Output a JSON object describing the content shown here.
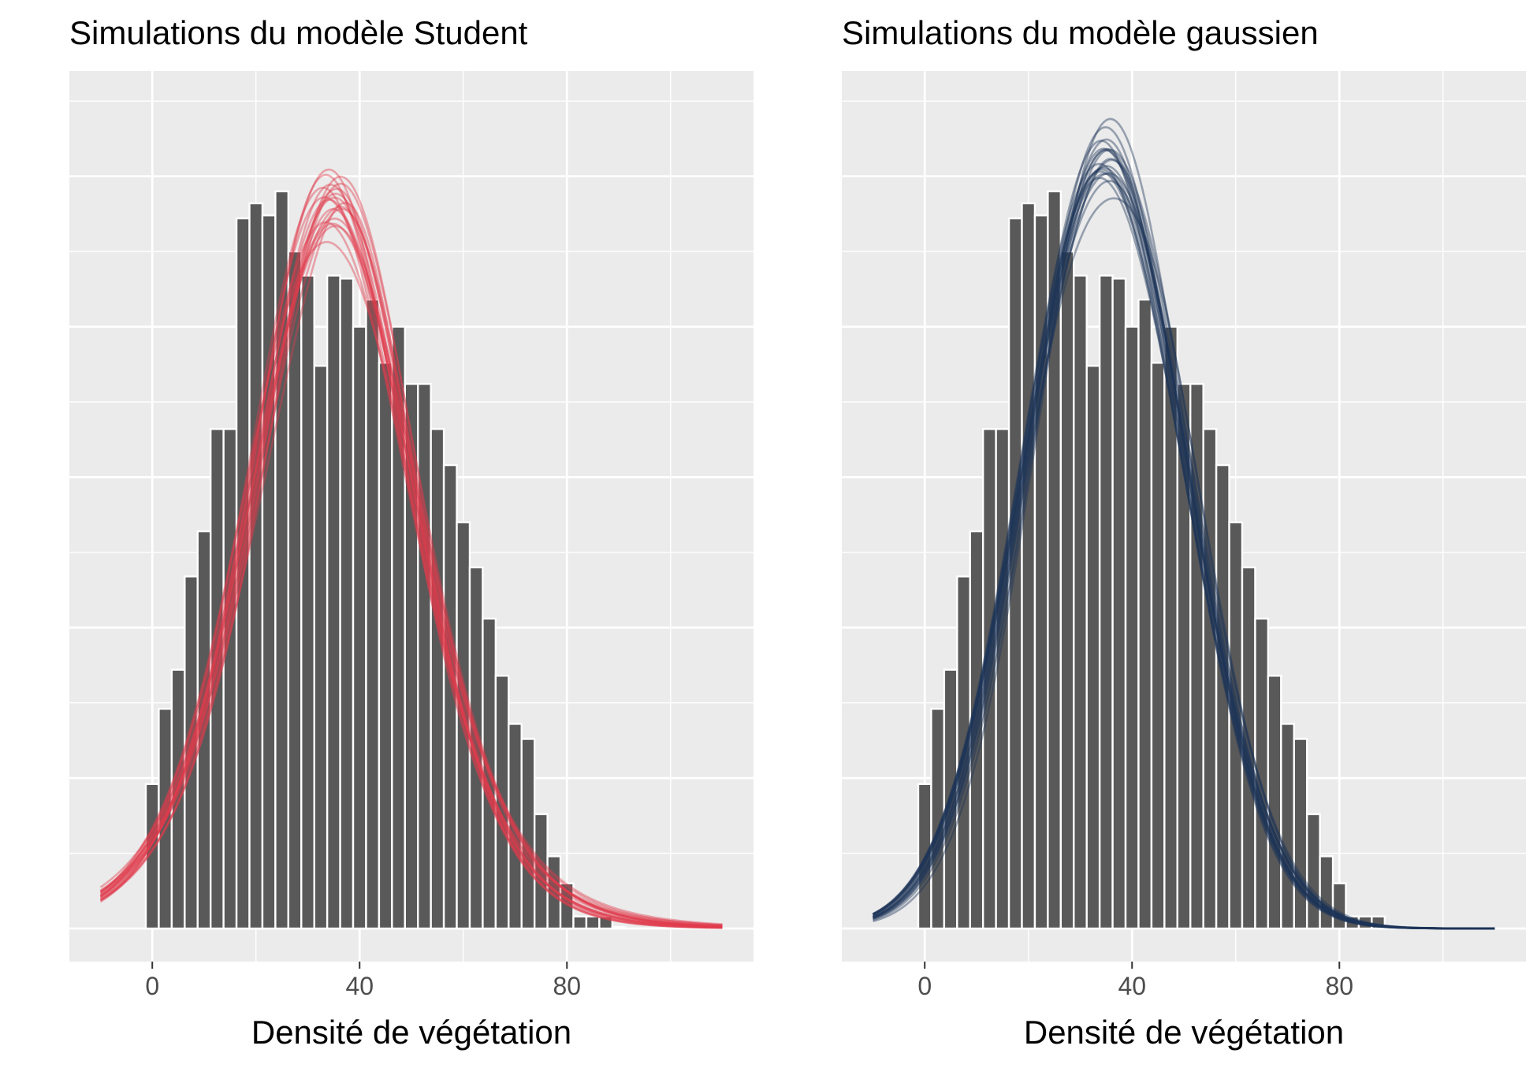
{
  "colors": {
    "panel_background": "#ebebeb",
    "grid_line": "#ffffff",
    "bar_fill": "#595959",
    "bar_outline": "#ffffff",
    "student_curve": "#e03c4c",
    "gaussian_curve": "#1d3557",
    "tick_text": "#4d4d4d"
  },
  "chart_data": [
    {
      "type": "bar",
      "subtype": "histogram-with-density-overlays",
      "title": "Simulations du modèle Student",
      "xlabel": "Densité de végétation",
      "ylabel": "",
      "xlim": [
        -16,
        116
      ],
      "ylim": [
        -0.0011,
        0.0285
      ],
      "x_ticks": [
        0,
        40,
        80
      ],
      "y_ticks_shown": false,
      "grid": true,
      "bin_width": 2.5,
      "bins": {
        "centers": [
          0,
          2.5,
          5,
          7.5,
          10,
          12.5,
          15,
          17.5,
          20,
          22.5,
          25,
          27.5,
          30,
          32.5,
          35,
          37.5,
          40,
          42.5,
          45,
          47.5,
          50,
          52.5,
          55,
          57.5,
          60,
          62.5,
          65,
          67.5,
          70,
          72.5,
          75,
          77.5,
          80,
          82.5,
          85,
          87.5,
          90
        ],
        "density": [
          0.0048,
          0.0073,
          0.0086,
          0.0117,
          0.0132,
          0.0166,
          0.0166,
          0.0236,
          0.0241,
          0.0237,
          0.0245,
          0.0225,
          0.0217,
          0.0187,
          0.0217,
          0.0216,
          0.02,
          0.0209,
          0.0188,
          0.02,
          0.0181,
          0.0181,
          0.0166,
          0.0154,
          0.0135,
          0.012,
          0.0103,
          0.0084,
          0.0068,
          0.0063,
          0.0038,
          0.0024,
          0.0015,
          0.0004,
          0.0004,
          0.0004,
          5e-05
        ]
      },
      "overlay": {
        "model": "student",
        "n_draws": 20,
        "curve_x_range": [
          -10,
          110
        ],
        "location_range": [
          33.5,
          36.5
        ],
        "scale_range": [
          15.8,
          16.6
        ],
        "df_range": [
          5,
          14
        ],
        "seed": 7
      }
    },
    {
      "type": "bar",
      "subtype": "histogram-with-density-overlays",
      "title": "Simulations du modèle gaussien",
      "xlabel": "Densité de végétation",
      "ylabel": "",
      "xlim": [
        -16,
        116
      ],
      "ylim": [
        -0.0011,
        0.0285
      ],
      "x_ticks": [
        0,
        40,
        80
      ],
      "y_ticks_shown": false,
      "grid": true,
      "bin_width": 2.5,
      "bins": {
        "centers": [
          0,
          2.5,
          5,
          7.5,
          10,
          12.5,
          15,
          17.5,
          20,
          22.5,
          25,
          27.5,
          30,
          32.5,
          35,
          37.5,
          40,
          42.5,
          45,
          47.5,
          50,
          52.5,
          55,
          57.5,
          60,
          62.5,
          65,
          67.5,
          70,
          72.5,
          75,
          77.5,
          80,
          82.5,
          85,
          87.5,
          90
        ],
        "density": [
          0.0048,
          0.0073,
          0.0086,
          0.0117,
          0.0132,
          0.0166,
          0.0166,
          0.0236,
          0.0241,
          0.0237,
          0.0245,
          0.0225,
          0.0217,
          0.0187,
          0.0217,
          0.0216,
          0.02,
          0.0209,
          0.0188,
          0.02,
          0.0181,
          0.0181,
          0.0166,
          0.0154,
          0.0135,
          0.012,
          0.0103,
          0.0084,
          0.0068,
          0.0063,
          0.0038,
          0.0024,
          0.0015,
          0.0004,
          0.0004,
          0.0004,
          5e-05
        ]
      },
      "overlay": {
        "model": "gaussian",
        "n_draws": 20,
        "curve_x_range": [
          -10,
          110
        ],
        "location_range": [
          34.2,
          36.8
        ],
        "scale_range": [
          15.2,
          16.0
        ],
        "seed": 11
      }
    }
  ]
}
